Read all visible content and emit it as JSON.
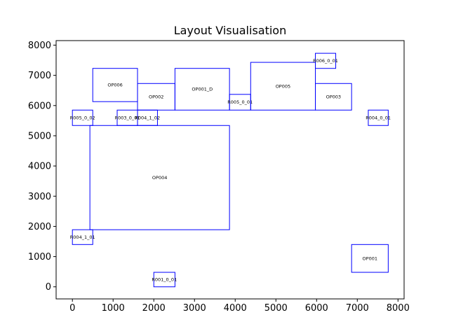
{
  "chart_data": {
    "type": "layout",
    "title": "Layout Visualisation",
    "xlim": [
      -400,
      8150
    ],
    "ylim": [
      -400,
      8150
    ],
    "x_ticks": [
      0,
      1000,
      2000,
      3000,
      4000,
      5000,
      6000,
      7000,
      8000
    ],
    "y_ticks": [
      0,
      1000,
      2000,
      3000,
      4000,
      5000,
      6000,
      7000,
      8000
    ],
    "grid": false,
    "outline_color": "#0000ff",
    "rectangles": [
      {
        "label": "OP006",
        "x0": 500,
        "y0": 6130,
        "x1": 1600,
        "y1": 7230
      },
      {
        "label": "OP002",
        "x0": 1600,
        "y0": 5850,
        "x1": 2520,
        "y1": 6730
      },
      {
        "label": "OP001_D",
        "x0": 2520,
        "y0": 5850,
        "x1": 3860,
        "y1": 7230
      },
      {
        "label": "R005_0_01",
        "x0": 3860,
        "y0": 5850,
        "x1": 4380,
        "y1": 6370
      },
      {
        "label": "OP005",
        "x0": 4380,
        "y0": 5850,
        "x1": 5970,
        "y1": 7430
      },
      {
        "label": "R006_0_01",
        "x0": 5970,
        "y0": 7230,
        "x1": 6470,
        "y1": 7730
      },
      {
        "label": "OP003",
        "x0": 5970,
        "y0": 5850,
        "x1": 6860,
        "y1": 6730
      },
      {
        "label": "R005_0_02",
        "x0": 0,
        "y0": 5340,
        "x1": 500,
        "y1": 5850
      },
      {
        "label": "R003_0_01",
        "x0": 1100,
        "y0": 5340,
        "x1": 1600,
        "y1": 5850
      },
      {
        "label": "R004_1_02",
        "x0": 1600,
        "y0": 5340,
        "x1": 2090,
        "y1": 5850
      },
      {
        "label": "R004_0_01",
        "x0": 7270,
        "y0": 5340,
        "x1": 7760,
        "y1": 5850
      },
      {
        "label": "OP004",
        "x0": 430,
        "y0": 1890,
        "x1": 3860,
        "y1": 5340
      },
      {
        "label": "R004_1_01",
        "x0": 0,
        "y0": 1400,
        "x1": 500,
        "y1": 1890
      },
      {
        "label": "OP001",
        "x0": 6860,
        "y0": 480,
        "x1": 7760,
        "y1": 1400
      },
      {
        "label": "R001_0_01",
        "x0": 2000,
        "y0": 0,
        "x1": 2520,
        "y1": 480
      }
    ]
  }
}
